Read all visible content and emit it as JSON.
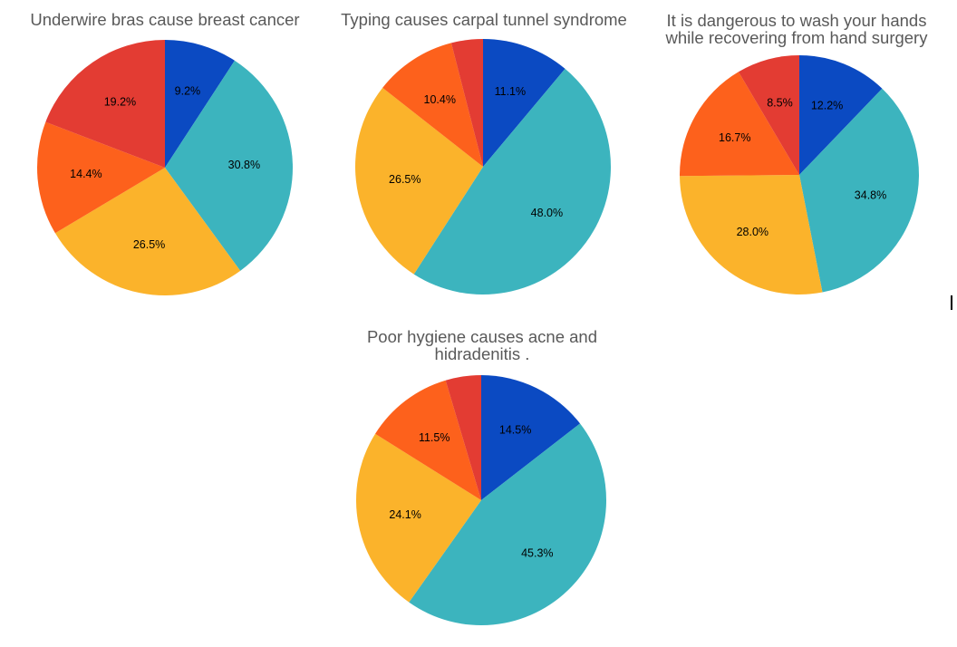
{
  "colors": {
    "slice_colors": [
      "#0b4ac2",
      "#3cb4be",
      "#fbb32b",
      "#fd611c",
      "#e33c33"
    ],
    "title_color": "#595959",
    "background": "#ffffff"
  },
  "chart_data": [
    {
      "type": "pie",
      "title": "Underwire bras cause breast cancer",
      "start_angle_deg": 0,
      "direction": "clockwise",
      "values": [
        9.2,
        30.8,
        26.5,
        14.4,
        19.2
      ],
      "labels": [
        "9.2%",
        "30.8%",
        "26.5%",
        "14.4%",
        "19.2%"
      ]
    },
    {
      "type": "pie",
      "title": "Typing causes carpal tunnel syndrome",
      "start_angle_deg": 0,
      "direction": "clockwise",
      "values": [
        11.1,
        48.0,
        26.5,
        10.4,
        4.0
      ],
      "labels": [
        "11.1%",
        "48.0%",
        "26.5%",
        "10.4%",
        ""
      ]
    },
    {
      "type": "pie",
      "title": "It is dangerous to wash your hands\nwhile recovering from hand surgery",
      "start_angle_deg": 0,
      "direction": "clockwise",
      "values": [
        12.2,
        34.8,
        28.0,
        16.7,
        8.5
      ],
      "labels": [
        "12.2%",
        "34.8%",
        "28.0%",
        "16.7%",
        "8.5%"
      ]
    },
    {
      "type": "pie",
      "title": "Poor hygiene causes acne and\nhidradenitis .",
      "start_angle_deg": 0,
      "direction": "clockwise",
      "values": [
        14.5,
        45.3,
        24.1,
        11.5,
        4.6
      ],
      "labels": [
        "14.5%",
        "45.3%",
        "24.1%",
        "11.5%",
        ""
      ]
    }
  ]
}
